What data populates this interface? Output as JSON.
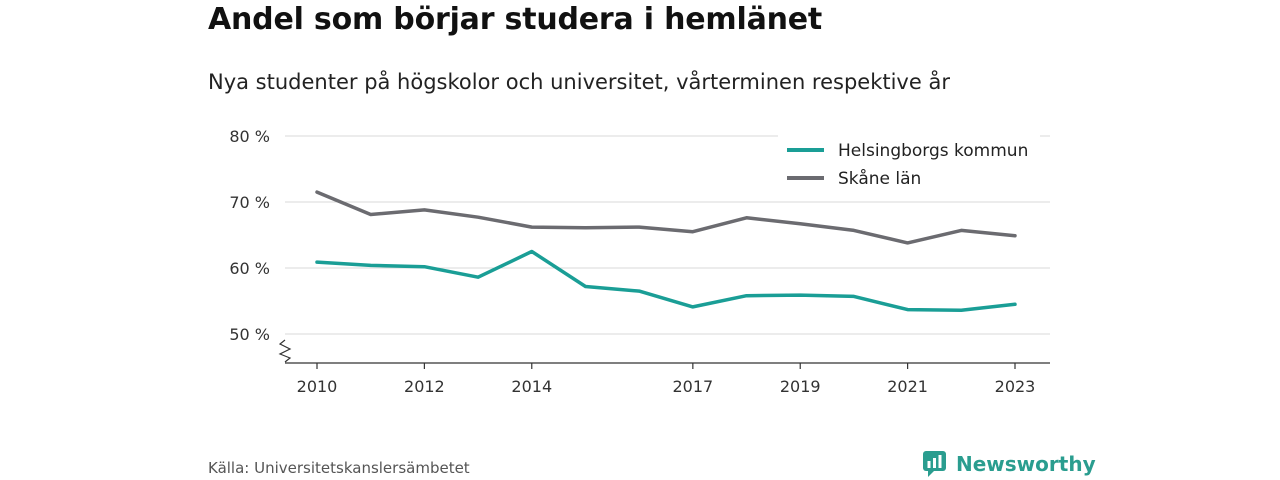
{
  "title": "Andel som börjar studera i hemlänet",
  "subtitle": "Nya studenter på högskolor och universitet, vårterminen respektive år",
  "source": "Källa: Universitetskanslersämbetet",
  "brand": "Newsworthy",
  "colors": {
    "helsingborg": "#1a9e96",
    "skane": "#6b6b70",
    "grid": "#d9d9d9",
    "brand": "#2a9d8f"
  },
  "chart_data": {
    "type": "line",
    "x": [
      2010,
      2011,
      2012,
      2013,
      2014,
      2015,
      2016,
      2017,
      2018,
      2019,
      2020,
      2021,
      2022,
      2023
    ],
    "xticks": [
      2010,
      2012,
      2014,
      2017,
      2019,
      2021,
      2023
    ],
    "yticks": [
      50,
      60,
      70,
      80
    ],
    "ytick_labels": [
      "50 %",
      "60 %",
      "70 %",
      "80 %"
    ],
    "ylim": [
      45.5,
      80
    ],
    "series": [
      {
        "name": "Helsingborgs kommun",
        "color": "#1a9e96",
        "values": [
          60.9,
          60.4,
          60.2,
          58.6,
          62.5,
          57.2,
          56.5,
          54.1,
          55.8,
          55.9,
          55.7,
          53.7,
          53.6,
          54.5
        ]
      },
      {
        "name": "Skåne län",
        "color": "#6b6b70",
        "values": [
          71.5,
          68.1,
          68.8,
          67.7,
          66.2,
          66.1,
          66.2,
          65.5,
          67.6,
          66.7,
          65.7,
          63.8,
          65.7,
          64.9
        ]
      }
    ],
    "legend": "top-right",
    "grid": true
  }
}
